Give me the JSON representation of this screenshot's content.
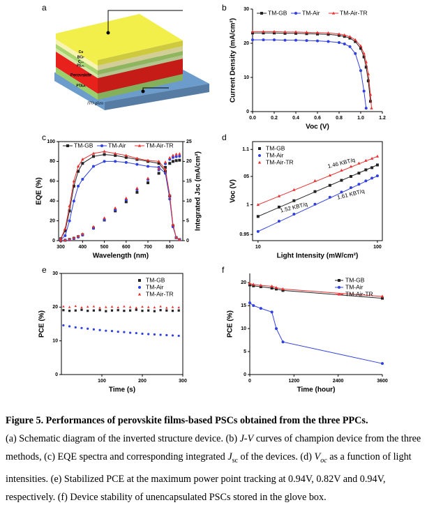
{
  "schematic": {
    "panel": "a",
    "layers": [
      {
        "name": "Cu",
        "color": "#f2ee4a",
        "text_color": "#000"
      },
      {
        "name": "BCP",
        "color": "#f7f3b0",
        "text_color": "#000"
      },
      {
        "name": "C₆₀",
        "color": "#a8d56f",
        "text_color": "#000"
      },
      {
        "name": "PEAI",
        "color": "#d4e8a6",
        "text_color": "#000"
      },
      {
        "name": "Perovskite",
        "color": "#e8211d",
        "text_color": "#fff"
      },
      {
        "name": "PTAA",
        "color": "#9ccf6c",
        "text_color": "#000"
      },
      {
        "name": "ITO glass",
        "color": "#6c9ccc",
        "text_color": "#000"
      }
    ]
  },
  "chart_data": [
    {
      "type": "line",
      "panel": "b",
      "mode": "lines+markers",
      "frame": "axes",
      "legend": "top",
      "x_label": "Voc (V)",
      "y_label": "Current Density (mA/cm²)",
      "x": [
        0,
        0.1,
        0.2,
        0.3,
        0.4,
        0.5,
        0.6,
        0.7,
        0.8,
        0.85,
        0.9,
        0.95,
        1.0,
        1.03,
        1.05,
        1.07,
        1.09,
        1.1
      ],
      "xlim": [
        0,
        1.2
      ],
      "xticks": [
        {
          "value": 0,
          "label": "0.0"
        },
        0.2,
        0.4,
        0.6,
        0.8,
        {
          "value": 1,
          "label": "1.0"
        },
        1.2
      ],
      "ylim": [
        0,
        30
      ],
      "yticks": [
        0,
        10,
        20,
        30
      ],
      "series": [
        {
          "name": "TM-GB",
          "color": "#222222",
          "marker": "square",
          "values": [
            23.0,
            23.0,
            23.0,
            22.9,
            22.9,
            22.8,
            22.7,
            22.6,
            22.3,
            22.0,
            21.5,
            20.5,
            18.5,
            16,
            13,
            9,
            3,
            null
          ]
        },
        {
          "name": "TM-Air",
          "color": "#2f3fe0",
          "marker": "circle",
          "values": [
            21.0,
            21.0,
            21.0,
            20.9,
            20.9,
            20.8,
            20.7,
            20.5,
            20.2,
            19.8,
            19.0,
            17.0,
            12,
            6,
            1,
            null,
            null,
            null
          ]
        },
        {
          "name": "TM-Air-TR",
          "color": "#e8302f",
          "marker": "triangle",
          "values": [
            23.4,
            23.4,
            23.4,
            23.3,
            23.3,
            23.2,
            23.1,
            23.0,
            22.7,
            22.4,
            21.9,
            21.0,
            19.2,
            17,
            14.5,
            11,
            5,
            1
          ]
        }
      ]
    },
    {
      "type": "line",
      "panel": "c",
      "mode": "lines+markers",
      "frame": "box",
      "legend": "top",
      "x_label": "Wavelength (nm)",
      "y_label": "EQE (%)",
      "y2_label": "Integrated Jsc (mA/cm²)",
      "x": [
        300,
        320,
        340,
        360,
        380,
        400,
        450,
        500,
        550,
        600,
        650,
        700,
        750,
        780,
        800,
        815,
        830,
        845
      ],
      "xlim": [
        290,
        860
      ],
      "xticks": [
        300,
        400,
        500,
        600,
        700,
        800
      ],
      "ylim": [
        0,
        100
      ],
      "yticks": [
        0,
        20,
        40,
        60,
        80,
        100
      ],
      "y2lim": [
        0,
        25
      ],
      "y2ticks": [
        0,
        5,
        10,
        15,
        20,
        25
      ],
      "series": [
        {
          "name": "TM-GB",
          "color": "#222222",
          "marker": "square",
          "values": [
            2,
            10,
            30,
            55,
            70,
            78,
            85,
            87,
            86,
            84,
            82,
            80,
            78,
            70,
            45,
            15,
            3,
            1
          ],
          "jsc_values": [
            0,
            0.1,
            0.3,
            0.6,
            1.0,
            1.5,
            3.2,
            5.2,
            7.5,
            9.8,
            12.2,
            14.6,
            17.0,
            18.5,
            19.5,
            20.0,
            20.2,
            20.3
          ]
        },
        {
          "name": "TM-Air",
          "color": "#2f3fe0",
          "marker": "circle",
          "values": [
            1,
            5,
            20,
            40,
            55,
            62,
            75,
            80,
            80,
            79,
            77,
            75,
            74,
            68,
            42,
            14,
            3,
            1
          ],
          "jsc_values": [
            0,
            0.1,
            0.2,
            0.5,
            0.9,
            1.4,
            3.1,
            5.3,
            7.8,
            10.3,
            12.9,
            15.4,
            17.9,
            19.4,
            20.5,
            21.0,
            21.2,
            21.3
          ]
        },
        {
          "name": "TM-Air-TR",
          "color": "#e8302f",
          "marker": "triangle",
          "values": [
            2,
            12,
            35,
            60,
            75,
            82,
            88,
            90,
            88,
            86,
            83,
            81,
            80,
            72,
            46,
            16,
            3,
            1
          ],
          "jsc_values": [
            0,
            0.1,
            0.3,
            0.7,
            1.1,
            1.7,
            3.5,
            5.7,
            8.2,
            10.7,
            13.2,
            15.7,
            18.2,
            19.8,
            20.9,
            21.5,
            21.8,
            21.9
          ]
        }
      ]
    },
    {
      "type": "scatter",
      "panel": "d",
      "mode": "markers",
      "frame": "box",
      "legend": "upper left",
      "fit": true,
      "xscale": "log",
      "yscale": "log",
      "x_label": "Light Intensity (mW/cm²)",
      "y_label": "Voc (V)",
      "x": [
        10,
        15,
        20,
        30,
        40,
        50,
        60,
        70,
        80,
        90,
        100
      ],
      "xlim": [
        9,
        110
      ],
      "xticks": [
        10,
        100
      ],
      "ylim": [
        0.94,
        1.115
      ],
      "yticks": [
        0.95,
        1,
        {
          "value": 1.05,
          "label": "05"
        },
        1.1
      ],
      "series": [
        {
          "name": "TM-GB",
          "color": "#222222",
          "marker": "square",
          "fit_label": "1.52 KBT/q",
          "values": [
            0.98,
            0.996,
            1.007,
            1.023,
            1.034,
            1.043,
            1.05,
            1.056,
            1.062,
            1.066,
            1.071
          ]
        },
        {
          "name": "TM-Air",
          "color": "#2f3fe0",
          "marker": "circle",
          "fit_label": "1.61 KBT/q",
          "values": [
            0.955,
            0.972,
            0.984,
            1.001,
            1.013,
            1.022,
            1.03,
            1.036,
            1.042,
            1.047,
            1.051
          ]
        },
        {
          "name": "TM-Air-TR",
          "color": "#e8302f",
          "marker": "triangle",
          "fit_label": "1.46 KBT/q",
          "values": [
            1.0,
            1.015,
            1.026,
            1.042,
            1.052,
            1.061,
            1.068,
            1.074,
            1.079,
            1.083,
            1.087
          ]
        }
      ]
    },
    {
      "type": "scatter",
      "panel": "e",
      "mode": "markers",
      "frame": "box",
      "legend": "upper right",
      "x_label": "Time (s)",
      "y_label": "PCE (%)",
      "x": [
        5,
        20,
        35,
        50,
        65,
        80,
        95,
        110,
        125,
        140,
        155,
        170,
        185,
        200,
        215,
        230,
        245,
        260,
        275,
        290
      ],
      "xlim": [
        0,
        300
      ],
      "xticks": [
        100,
        200,
        300
      ],
      "ylim": [
        0,
        30
      ],
      "yticks": [
        0,
        10,
        20,
        30
      ],
      "series": [
        {
          "name": "TM-GB",
          "color": "#222222",
          "marker": "square",
          "values": [
            19.1,
            18.9,
            19.0,
            19.2,
            18.9,
            19.0,
            19.1,
            18.8,
            19.0,
            19.1,
            18.9,
            19.0,
            19.2,
            18.9,
            19.0,
            18.8,
            19.1,
            19.0,
            18.9,
            19.0
          ]
        },
        {
          "name": "TM-Air",
          "color": "#2f3fe0",
          "marker": "circle",
          "values": [
            14.6,
            14.3,
            14.0,
            13.8,
            13.6,
            13.4,
            13.2,
            13.0,
            12.9,
            12.7,
            12.6,
            12.4,
            12.3,
            12.1,
            12.0,
            11.9,
            11.8,
            11.7,
            11.6,
            11.5
          ]
        },
        {
          "name": "TM-Air-TR",
          "color": "#e8302f",
          "marker": "triangle",
          "values": [
            20.2,
            20.0,
            20.3,
            19.9,
            20.1,
            20.2,
            19.8,
            20.0,
            20.1,
            19.9,
            20.2,
            20.0,
            19.8,
            20.1,
            20.0,
            19.9,
            20.2,
            19.8,
            20.0,
            19.9
          ]
        }
      ]
    },
    {
      "type": "line",
      "panel": "f",
      "mode": "lines+markers",
      "frame": "axes",
      "legend": "upper right",
      "x_label": "Time (hour)",
      "y_label": "PCE (%)",
      "x": [
        0,
        100,
        300,
        600,
        720,
        900,
        3600
      ],
      "xlim": [
        0,
        3600
      ],
      "xticks": [
        0,
        1200,
        2400,
        3600
      ],
      "ylim": [
        0,
        22
      ],
      "yticks": [
        0,
        5,
        10,
        15,
        20
      ],
      "series": [
        {
          "name": "TM-GB",
          "color": "#222222",
          "marker": "square",
          "values": [
            19.5,
            19.3,
            19.1,
            18.8,
            18.6,
            18.3,
            16.6
          ]
        },
        {
          "name": "TM-Air",
          "color": "#2f3fe0",
          "marker": "circle",
          "values": [
            15.6,
            15.0,
            14.4,
            13.6,
            10.0,
            7.1,
            2.4
          ]
        },
        {
          "name": "TM-Air-TR",
          "color": "#e8302f",
          "marker": "triangle",
          "values": [
            19.8,
            19.6,
            19.4,
            19.2,
            18.9,
            18.6,
            17.0
          ]
        }
      ]
    }
  ],
  "caption": {
    "title": "Figure 5. Performances of perovskite films-based PSCs obtained from the three PPCs.",
    "parts": [
      "(a) Schematic diagram of the inverted structure device. (b) ",
      "J-V",
      " curves of champion device from the three methods, (c) EQE spectra and corresponding integrated ",
      "J",
      "sc",
      " of the devices. (d) ",
      "V",
      "oc",
      " as a function of light intensities. (e) Stabilized PCE at the maximum power point tracking at 0.94V, 0.82V and 0.94V, respectively. (f) Device stability of unencapsulated PSCs stored in the glove box."
    ]
  }
}
